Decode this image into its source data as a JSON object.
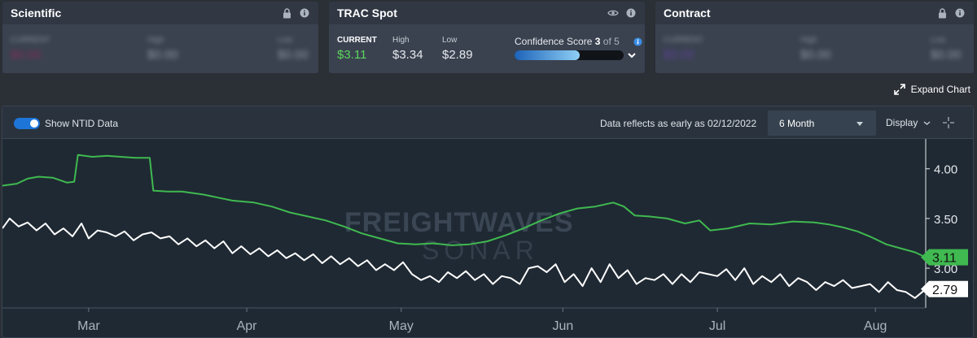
{
  "cards": {
    "scientific": {
      "title": "Scientific",
      "current_label": "CURRENT",
      "current_value": "$0.00",
      "high_label": "High",
      "high_value": "$0.00",
      "low_label": "Low",
      "low_value": "$0.00",
      "current_color": "#c2185b"
    },
    "trac": {
      "title": "TRAC Spot",
      "current_label": "CURRENT",
      "current_value": "$3.11",
      "high_label": "High",
      "high_value": "$3.34",
      "low_label": "Low",
      "low_value": "$2.89",
      "confidence_label": "Confidence Score",
      "confidence_score": "3",
      "confidence_of": "of 5",
      "confidence_fraction": 0.6,
      "current_color": "#5cd65c"
    },
    "contract": {
      "title": "Contract",
      "current_label": "CURRENT",
      "current_value": "$0.00",
      "high_label": "High",
      "high_value": "$0.00",
      "low_label": "Low",
      "low_value": "$0.00",
      "current_color": "#7b3fd1"
    }
  },
  "expand_label": "Expand Chart",
  "toolbar": {
    "toggle_label": "Show NTID Data",
    "toggle_on": true,
    "data_note": "Data reflects as early as 02/12/2022",
    "range_value": "6 Month",
    "display_label": "Display"
  },
  "watermark": {
    "line1": "FREIGHTWAVES",
    "line2": "SONAR"
  },
  "colors": {
    "green": "#3fb950",
    "white": "#ffffff",
    "accent": "#1d75d8",
    "bg": "#1f2933"
  },
  "chart_data": {
    "type": "line",
    "x_unit": "weeks from Feb 13 2022",
    "xticks": [
      {
        "label": "Mar",
        "x": 2.4
      },
      {
        "label": "Apr",
        "x": 6.8
      },
      {
        "label": "May",
        "x": 11.1
      },
      {
        "label": "Jun",
        "x": 15.6
      },
      {
        "label": "Jul",
        "x": 19.9
      },
      {
        "label": "Aug",
        "x": 24.3
      }
    ],
    "yticks": [
      3.0,
      3.5,
      4.0
    ],
    "ylim": [
      2.6,
      4.3
    ],
    "xlim": [
      0,
      25.7
    ],
    "series": [
      {
        "name": "TRAC Spot",
        "color": "#3fb950",
        "last_label": "3.11",
        "points": [
          [
            0,
            3.83
          ],
          [
            0.4,
            3.85
          ],
          [
            0.7,
            3.9
          ],
          [
            1.0,
            3.92
          ],
          [
            1.4,
            3.91
          ],
          [
            1.8,
            3.86
          ],
          [
            2.0,
            3.87
          ],
          [
            2.1,
            4.14
          ],
          [
            2.5,
            4.12
          ],
          [
            2.9,
            4.13
          ],
          [
            3.3,
            4.12
          ],
          [
            3.7,
            4.11
          ],
          [
            4.1,
            4.11
          ],
          [
            4.2,
            3.78
          ],
          [
            4.6,
            3.77
          ],
          [
            5.0,
            3.77
          ],
          [
            5.6,
            3.74
          ],
          [
            6.0,
            3.71
          ],
          [
            6.4,
            3.68
          ],
          [
            7.0,
            3.66
          ],
          [
            7.5,
            3.62
          ],
          [
            8.0,
            3.56
          ],
          [
            8.5,
            3.52
          ],
          [
            9.0,
            3.48
          ],
          [
            9.5,
            3.42
          ],
          [
            10.0,
            3.35
          ],
          [
            10.5,
            3.3
          ],
          [
            11.0,
            3.25
          ],
          [
            11.5,
            3.24
          ],
          [
            12.0,
            3.25
          ],
          [
            12.5,
            3.23
          ],
          [
            13.0,
            3.24
          ],
          [
            13.5,
            3.27
          ],
          [
            14.0,
            3.33
          ],
          [
            14.5,
            3.4
          ],
          [
            15.0,
            3.48
          ],
          [
            15.5,
            3.55
          ],
          [
            16.0,
            3.6
          ],
          [
            16.5,
            3.62
          ],
          [
            17.0,
            3.66
          ],
          [
            17.3,
            3.62
          ],
          [
            17.6,
            3.53
          ],
          [
            18.0,
            3.52
          ],
          [
            18.5,
            3.5
          ],
          [
            19.0,
            3.45
          ],
          [
            19.4,
            3.48
          ],
          [
            19.7,
            3.38
          ],
          [
            20.2,
            3.4
          ],
          [
            20.8,
            3.45
          ],
          [
            21.4,
            3.44
          ],
          [
            22.0,
            3.47
          ],
          [
            22.6,
            3.46
          ],
          [
            23.0,
            3.44
          ],
          [
            23.4,
            3.41
          ],
          [
            23.8,
            3.37
          ],
          [
            24.2,
            3.31
          ],
          [
            24.6,
            3.24
          ],
          [
            25.0,
            3.2
          ],
          [
            25.4,
            3.16
          ],
          [
            25.7,
            3.11
          ]
        ]
      },
      {
        "name": "NTID",
        "color": "#ffffff",
        "last_label": "2.79",
        "points": [
          [
            0,
            3.4
          ],
          [
            0.2,
            3.5
          ],
          [
            0.45,
            3.42
          ],
          [
            0.7,
            3.46
          ],
          [
            0.95,
            3.38
          ],
          [
            1.2,
            3.45
          ],
          [
            1.45,
            3.34
          ],
          [
            1.7,
            3.4
          ],
          [
            1.95,
            3.32
          ],
          [
            2.2,
            3.45
          ],
          [
            2.4,
            3.3
          ],
          [
            2.65,
            3.38
          ],
          [
            2.9,
            3.36
          ],
          [
            3.15,
            3.32
          ],
          [
            3.4,
            3.37
          ],
          [
            3.65,
            3.28
          ],
          [
            3.9,
            3.34
          ],
          [
            4.15,
            3.36
          ],
          [
            4.4,
            3.3
          ],
          [
            4.65,
            3.32
          ],
          [
            4.9,
            3.24
          ],
          [
            5.15,
            3.3
          ],
          [
            5.4,
            3.22
          ],
          [
            5.65,
            3.28
          ],
          [
            5.9,
            3.2
          ],
          [
            6.15,
            3.27
          ],
          [
            6.4,
            3.15
          ],
          [
            6.65,
            3.22
          ],
          [
            6.9,
            3.14
          ],
          [
            7.15,
            3.2
          ],
          [
            7.4,
            3.12
          ],
          [
            7.65,
            3.18
          ],
          [
            7.9,
            3.1
          ],
          [
            8.15,
            3.15
          ],
          [
            8.4,
            3.08
          ],
          [
            8.65,
            3.14
          ],
          [
            8.9,
            3.05
          ],
          [
            9.15,
            3.12
          ],
          [
            9.4,
            3.04
          ],
          [
            9.65,
            3.1
          ],
          [
            9.9,
            3.02
          ],
          [
            10.15,
            3.08
          ],
          [
            10.4,
            2.98
          ],
          [
            10.65,
            3.04
          ],
          [
            10.9,
            2.98
          ],
          [
            11.15,
            3.06
          ],
          [
            11.4,
            2.94
          ],
          [
            11.65,
            2.88
          ],
          [
            11.9,
            2.92
          ],
          [
            12.15,
            2.86
          ],
          [
            12.4,
            2.96
          ],
          [
            12.65,
            2.9
          ],
          [
            12.9,
            2.97
          ],
          [
            13.15,
            2.88
          ],
          [
            13.4,
            2.94
          ],
          [
            13.65,
            2.84
          ],
          [
            13.9,
            2.92
          ],
          [
            14.15,
            2.9
          ],
          [
            14.4,
            2.84
          ],
          [
            14.65,
            3.0
          ],
          [
            14.9,
            3.02
          ],
          [
            15.15,
            2.96
          ],
          [
            15.4,
            3.04
          ],
          [
            15.65,
            2.86
          ],
          [
            15.9,
            2.94
          ],
          [
            16.15,
            2.82
          ],
          [
            16.4,
            3.0
          ],
          [
            16.65,
            2.86
          ],
          [
            16.9,
            3.04
          ],
          [
            17.15,
            2.9
          ],
          [
            17.4,
            2.98
          ],
          [
            17.65,
            2.84
          ],
          [
            17.9,
            2.9
          ],
          [
            18.15,
            2.88
          ],
          [
            18.4,
            2.94
          ],
          [
            18.65,
            2.84
          ],
          [
            18.9,
            2.94
          ],
          [
            19.15,
            2.86
          ],
          [
            19.4,
            2.96
          ],
          [
            19.65,
            2.94
          ],
          [
            19.9,
            2.92
          ],
          [
            20.15,
            2.99
          ],
          [
            20.4,
            2.88
          ],
          [
            20.65,
            3.0
          ],
          [
            20.9,
            2.84
          ],
          [
            21.15,
            2.92
          ],
          [
            21.4,
            2.86
          ],
          [
            21.65,
            2.94
          ],
          [
            21.9,
            2.82
          ],
          [
            22.15,
            2.9
          ],
          [
            22.4,
            2.86
          ],
          [
            22.65,
            2.78
          ],
          [
            22.9,
            2.86
          ],
          [
            23.15,
            2.82
          ],
          [
            23.4,
            2.88
          ],
          [
            23.65,
            2.8
          ],
          [
            23.9,
            2.82
          ],
          [
            24.15,
            2.84
          ],
          [
            24.4,
            2.76
          ],
          [
            24.65,
            2.86
          ],
          [
            24.9,
            2.78
          ],
          [
            25.15,
            2.76
          ],
          [
            25.4,
            2.7
          ],
          [
            25.7,
            2.79
          ]
        ]
      }
    ]
  }
}
